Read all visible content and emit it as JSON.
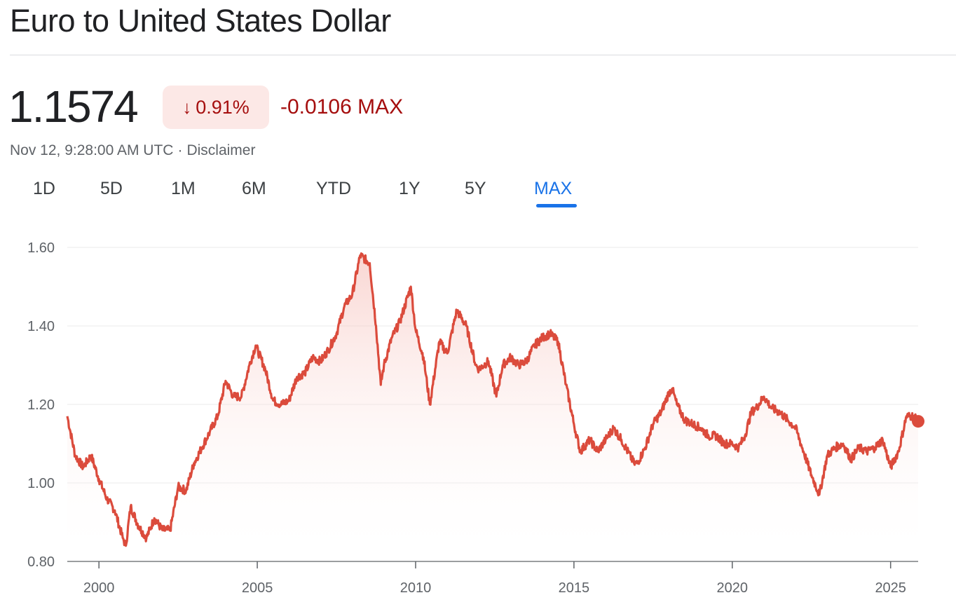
{
  "header": {
    "title": "Euro to United States Dollar",
    "price": "1.1574",
    "percent_change": "0.91%",
    "absolute_change": "-0.0106 MAX",
    "timestamp": "Nov 12, 9:28:00 AM UTC",
    "separator": "·",
    "disclaimer": "Disclaimer",
    "arrow_icon": "arrow-down-icon"
  },
  "tabs": [
    {
      "label": "1D"
    },
    {
      "label": "5D"
    },
    {
      "label": "1M"
    },
    {
      "label": "6M"
    },
    {
      "label": "YTD"
    },
    {
      "label": "1Y"
    },
    {
      "label": "5Y"
    },
    {
      "label": "MAX",
      "active": true
    }
  ],
  "colors": {
    "line": "#db4b3c",
    "fill_top": "#f5b5ae",
    "negative_text": "#a50e0e",
    "negative_bg": "#fce8e6",
    "active_tab": "#1a73e8"
  },
  "chart_data": {
    "type": "line",
    "title": "",
    "xlabel": "",
    "ylabel": "",
    "ylim": [
      0.8,
      1.6
    ],
    "xlim": [
      1999.0,
      2025.87
    ],
    "y_ticks": [
      "0.80",
      "1.00",
      "1.20",
      "1.40",
      "1.60"
    ],
    "x_ticks": [
      "2000",
      "2005",
      "2010",
      "2015",
      "2020",
      "2025"
    ],
    "grid": true,
    "legend": "none",
    "series": [
      {
        "name": "",
        "x": [
          1999.0,
          1999.25,
          1999.5,
          1999.75,
          2000.0,
          2000.25,
          2000.5,
          2000.75,
          2000.85,
          2001.0,
          2001.25,
          2001.5,
          2001.75,
          2002.0,
          2002.25,
          2002.5,
          2002.75,
          2003.0,
          2003.25,
          2003.5,
          2003.75,
          2004.0,
          2004.25,
          2004.5,
          2004.75,
          2004.95,
          2005.25,
          2005.5,
          2005.75,
          2006.0,
          2006.25,
          2006.5,
          2006.75,
          2007.0,
          2007.25,
          2007.5,
          2007.75,
          2008.0,
          2008.25,
          2008.55,
          2008.75,
          2008.9,
          2009.0,
          2009.25,
          2009.5,
          2009.85,
          2010.0,
          2010.25,
          2010.45,
          2010.75,
          2011.0,
          2011.3,
          2011.6,
          2011.9,
          2012.0,
          2012.3,
          2012.55,
          2012.75,
          2013.0,
          2013.25,
          2013.5,
          2013.75,
          2014.0,
          2014.25,
          2014.5,
          2014.75,
          2015.0,
          2015.2,
          2015.5,
          2015.75,
          2016.0,
          2016.25,
          2016.5,
          2016.9,
          2017.0,
          2017.25,
          2017.5,
          2017.75,
          2018.0,
          2018.1,
          2018.25,
          2018.5,
          2018.75,
          2019.0,
          2019.25,
          2019.5,
          2019.75,
          2020.0,
          2020.2,
          2020.4,
          2020.6,
          2020.75,
          2021.0,
          2021.25,
          2021.5,
          2021.75,
          2022.0,
          2022.25,
          2022.5,
          2022.75,
          2023.0,
          2023.25,
          2023.5,
          2023.75,
          2024.0,
          2024.25,
          2024.5,
          2024.75,
          2025.0,
          2025.25,
          2025.5,
          2025.75,
          2025.87
        ],
        "values": [
          1.17,
          1.07,
          1.04,
          1.07,
          1.01,
          0.96,
          0.93,
          0.86,
          0.84,
          0.94,
          0.89,
          0.86,
          0.91,
          0.88,
          0.88,
          0.99,
          0.98,
          1.05,
          1.09,
          1.13,
          1.17,
          1.26,
          1.22,
          1.22,
          1.3,
          1.35,
          1.29,
          1.21,
          1.2,
          1.21,
          1.27,
          1.28,
          1.32,
          1.31,
          1.34,
          1.38,
          1.45,
          1.48,
          1.58,
          1.56,
          1.4,
          1.25,
          1.3,
          1.37,
          1.41,
          1.5,
          1.39,
          1.32,
          1.2,
          1.36,
          1.33,
          1.44,
          1.4,
          1.3,
          1.29,
          1.31,
          1.22,
          1.3,
          1.32,
          1.3,
          1.31,
          1.35,
          1.37,
          1.38,
          1.36,
          1.25,
          1.15,
          1.08,
          1.11,
          1.08,
          1.11,
          1.14,
          1.11,
          1.05,
          1.05,
          1.09,
          1.15,
          1.18,
          1.23,
          1.24,
          1.2,
          1.16,
          1.15,
          1.14,
          1.12,
          1.12,
          1.1,
          1.1,
          1.09,
          1.12,
          1.18,
          1.19,
          1.22,
          1.19,
          1.18,
          1.16,
          1.14,
          1.08,
          1.02,
          0.97,
          1.07,
          1.09,
          1.1,
          1.06,
          1.09,
          1.08,
          1.09,
          1.11,
          1.04,
          1.08,
          1.17,
          1.17,
          1.157
        ]
      }
    ]
  }
}
